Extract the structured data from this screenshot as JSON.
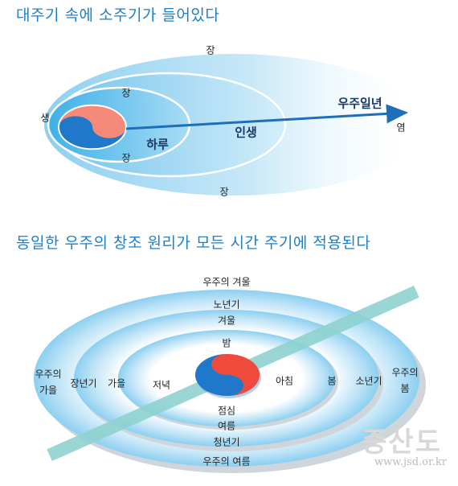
{
  "heading1": "대주기 속에 소주기가 들어있다",
  "heading2": "동일한 우주의 창조 원리가 모든 시간 주기에 적용된다",
  "diagram1": {
    "jang_top": "장",
    "jang_inner_top": "장",
    "saeng": "생",
    "haru": "하루",
    "insaeng": "인생",
    "ujuilnyeon": "우주일년",
    "yeom": "염",
    "jang_inner_bottom": "장",
    "jang_bottom": "장"
  },
  "diagram2": {
    "uju_gyeoul": "우주의 겨울",
    "nonyeongi": "노년기",
    "gyeoul": "겨울",
    "bam": "밤",
    "uju_gaeul": "우주의\n가을",
    "jangnyeongi": "장년기",
    "gaeul": "가을",
    "jeonyeok": "저녁",
    "achim": "아침",
    "bom": "봄",
    "sonyeongi": "소년기",
    "uju_bom": "우주의\n봄",
    "jeomsim": "점심",
    "yeoreum": "여름",
    "cheongnyeongi": "청년기",
    "uju_yeoreum": "우주의 여름"
  },
  "watermark": {
    "brand": "증산도",
    "url": "www.jsd.or.kr"
  },
  "colors": {
    "heading": "#1e7fc4",
    "ring_light": "#e6f4fc",
    "ring_mid": "#a9d9f3",
    "yinyang_blue": "#1f78c9",
    "yinyang_red": "#f0574a",
    "bar": "#8ed1cf"
  }
}
